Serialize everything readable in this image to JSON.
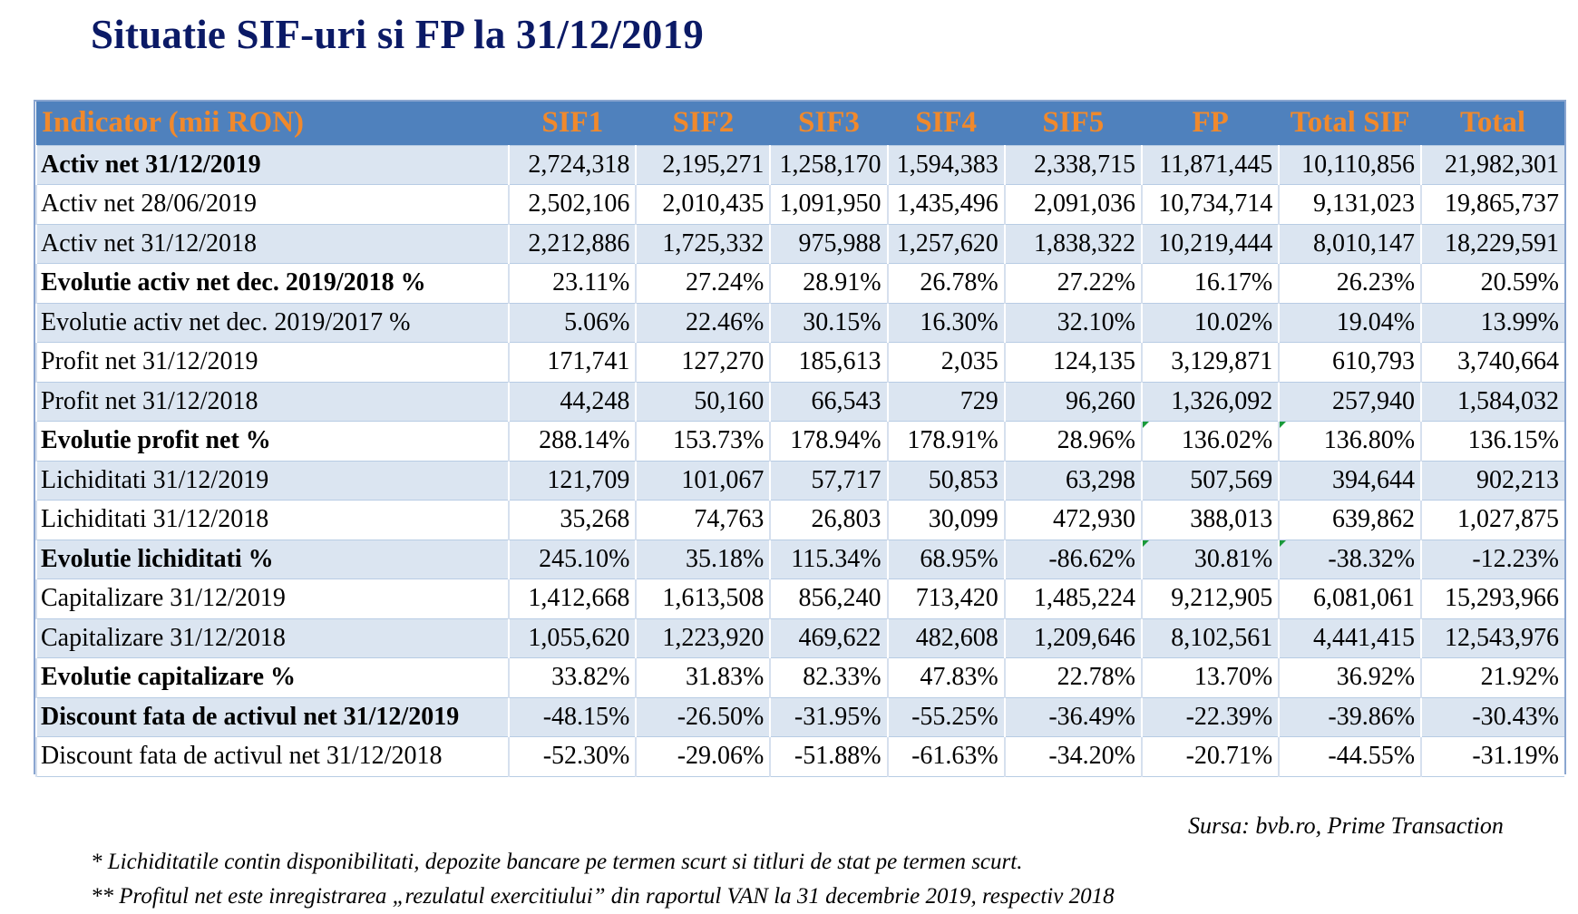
{
  "title": "Situatie SIF-uri si FP la 31/12/2019",
  "table": {
    "headers": [
      "Indicator (mii RON)",
      "SIF1",
      "SIF2",
      "SIF3",
      "SIF4",
      "SIF5",
      "FP",
      "Total SIF",
      "Total"
    ],
    "rows": [
      {
        "label": "Activ net 31/12/2019",
        "bold": true,
        "values": [
          "2,724,318",
          "2,195,271",
          "1,258,170",
          "1,594,383",
          "2,338,715",
          "11,871,445",
          "10,110,856",
          "21,982,301"
        ]
      },
      {
        "label": "Activ net 28/06/2019",
        "bold": false,
        "values": [
          "2,502,106",
          "2,010,435",
          "1,091,950",
          "1,435,496",
          "2,091,036",
          "10,734,714",
          "9,131,023",
          "19,865,737"
        ]
      },
      {
        "label": "Activ net 31/12/2018",
        "bold": false,
        "values": [
          "2,212,886",
          "1,725,332",
          "975,988",
          "1,257,620",
          "1,838,322",
          "10,219,444",
          "8,010,147",
          "18,229,591"
        ]
      },
      {
        "label": "Evolutie activ net dec. 2019/2018 %",
        "bold": true,
        "values": [
          "23.11%",
          "27.24%",
          "28.91%",
          "26.78%",
          "27.22%",
          "16.17%",
          "26.23%",
          "20.59%"
        ]
      },
      {
        "label": "Evolutie activ net dec. 2019/2017 %",
        "bold": false,
        "values": [
          "5.06%",
          "22.46%",
          "30.15%",
          "16.30%",
          "32.10%",
          "10.02%",
          "19.04%",
          "13.99%"
        ]
      },
      {
        "label": "Profit net 31/12/2019",
        "bold": false,
        "values": [
          "171,741",
          "127,270",
          "185,613",
          "2,035",
          "124,135",
          "3,129,871",
          "610,793",
          "3,740,664"
        ]
      },
      {
        "label": "Profit net 31/12/2018",
        "bold": false,
        "values": [
          "44,248",
          "50,160",
          "66,543",
          "729",
          "96,260",
          "1,326,092",
          "257,940",
          "1,584,032"
        ]
      },
      {
        "label": "Evolutie profit net %",
        "bold": true,
        "values": [
          "288.14%",
          "153.73%",
          "178.94%",
          "178.91%",
          "28.96%",
          "136.02%",
          "136.80%",
          "136.15%"
        ]
      },
      {
        "label": "Lichiditati 31/12/2019",
        "bold": false,
        "values": [
          "121,709",
          "101,067",
          "57,717",
          "50,853",
          "63,298",
          "507,569",
          "394,644",
          "902,213"
        ]
      },
      {
        "label": "Lichiditati 31/12/2018",
        "bold": false,
        "values": [
          "35,268",
          "74,763",
          "26,803",
          "30,099",
          "472,930",
          "388,013",
          "639,862",
          "1,027,875"
        ]
      },
      {
        "label": "Evolutie lichiditati %",
        "bold": true,
        "values": [
          "245.10%",
          "35.18%",
          "115.34%",
          "68.95%",
          "-86.62%",
          "30.81%",
          "-38.32%",
          "-12.23%"
        ]
      },
      {
        "label": "Capitalizare 31/12/2019",
        "bold": false,
        "values": [
          "1,412,668",
          "1,613,508",
          "856,240",
          "713,420",
          "1,485,224",
          "9,212,905",
          "6,081,061",
          "15,293,966"
        ]
      },
      {
        "label": "Capitalizare 31/12/2018",
        "bold": false,
        "values": [
          "1,055,620",
          "1,223,920",
          "469,622",
          "482,608",
          "1,209,646",
          "8,102,561",
          "4,441,415",
          "12,543,976"
        ]
      },
      {
        "label": "Evolutie capitalizare %",
        "bold": true,
        "values": [
          "33.82%",
          "31.83%",
          "82.33%",
          "47.83%",
          "22.78%",
          "13.70%",
          "36.92%",
          "21.92%"
        ]
      },
      {
        "label": "Discount fata de activul net 31/12/2019",
        "bold": true,
        "values": [
          "-48.15%",
          "-26.50%",
          "-31.95%",
          "-55.25%",
          "-36.49%",
          "-22.39%",
          "-39.86%",
          "-30.43%"
        ]
      },
      {
        "label": "Discount fata de activul net 31/12/2018",
        "bold": false,
        "values": [
          "-52.30%",
          "-29.06%",
          "-51.88%",
          "-61.63%",
          "-34.20%",
          "-20.71%",
          "-44.55%",
          "-31.19%"
        ]
      }
    ]
  },
  "source": "Sursa: bvb.ro, Prime Transaction",
  "notes": [
    "* Lichiditatile contin disponibilitati, depozite bancare pe termen scurt si titluri de stat pe termen scurt.",
    "** Profitul net este inregistrarea „rezulatul exercitiului” din raportul VAN la 31 decembrie 2019, respectiv 2018"
  ],
  "colors": {
    "title": "#0b1a66",
    "header_bg": "#4f81bd",
    "header_text": "#f0892c",
    "row_shade": "#dbe5f1"
  }
}
